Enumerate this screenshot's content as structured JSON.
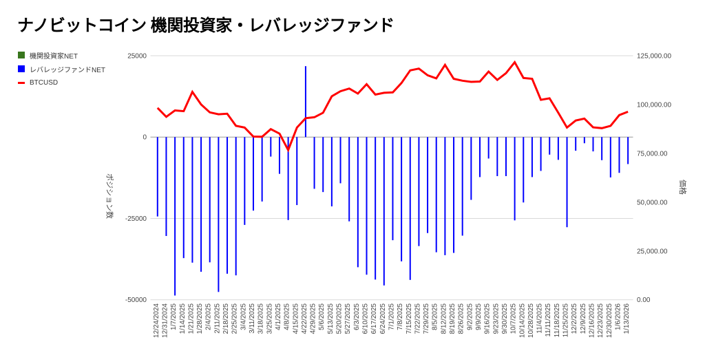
{
  "title": "ナノビットコイン 機関投資家・レバレッジファンド",
  "legend": [
    {
      "label": "機関投資家NET",
      "color": "#38761d",
      "swatch": "square"
    },
    {
      "label": "レバレッジファンドNET",
      "color": "#0000ff",
      "swatch": "square"
    },
    {
      "label": "BTCUSD",
      "color": "#ff0000",
      "swatch": "line"
    }
  ],
  "left_axis": {
    "title": "ポジション数",
    "tick_labels": [
      "25000",
      "0",
      "-25000",
      "-50000"
    ],
    "tick_values": [
      25000,
      0,
      -25000,
      -50000
    ],
    "range": [
      -50000,
      25000
    ]
  },
  "right_axis": {
    "title": "価格",
    "tick_labels": [
      "125,000.00",
      "100,000.00",
      "75,000.00",
      "50,000.00",
      "25,000.00",
      "0.00"
    ],
    "tick_values": [
      125000,
      100000,
      75000,
      50000,
      25000,
      0
    ],
    "range": [
      0,
      125000
    ]
  },
  "chart_data": {
    "type": "combo",
    "title": "ナノビットコイン 機関投資家・レバレッジファンド",
    "xlabel": "",
    "ylabel_left": "ポジション数",
    "ylabel_right": "価格",
    "ylim_left": [
      -50000,
      25000
    ],
    "ylim_right": [
      0,
      125000
    ],
    "grid": "horizontal",
    "legend_position": "left",
    "categories": [
      "12/24/2024",
      "12/31/2024",
      "1/7/2025",
      "1/14/2025",
      "1/21/2025",
      "1/28/2025",
      "2/4/2025",
      "2/11/2025",
      "2/18/2025",
      "2/25/2025",
      "3/4/2025",
      "3/11/2025",
      "3/18/2025",
      "3/25/2025",
      "4/1/2025",
      "4/8/2025",
      "4/15/2025",
      "4/22/2025",
      "4/29/2025",
      "5/6/2025",
      "5/13/2025",
      "5/20/2025",
      "5/27/2025",
      "6/3/2025",
      "6/10/2025",
      "6/17/2025",
      "6/24/2025",
      "7/1/2025",
      "7/8/2025",
      "7/15/2025",
      "7/22/2025",
      "7/29/2025",
      "8/5/2025",
      "8/12/2025",
      "8/19/2025",
      "8/26/2025",
      "9/2/2025",
      "9/9/2025",
      "9/16/2025",
      "9/23/2025",
      "9/30/2025",
      "10/7/2025",
      "10/14/2025",
      "10/28/2025",
      "11/4/2025",
      "11/11/2025",
      "11/18/2025",
      "11/25/2025",
      "12/2/2025",
      "12/9/2025",
      "12/16/2025",
      "12/23/2025",
      "12/30/2025",
      "1/6/2026",
      "1/13/2026"
    ],
    "series": [
      {
        "name": "機関投資家NET",
        "type": "bar",
        "axis": "left",
        "color": "#38761d",
        "values": [
          0,
          0,
          0,
          0,
          0,
          0,
          0,
          0,
          0,
          0,
          0,
          0,
          0,
          0,
          0,
          0,
          0,
          0,
          0,
          0,
          0,
          0,
          0,
          0,
          0,
          0,
          0,
          0,
          0,
          0,
          0,
          0,
          0,
          0,
          0,
          0,
          0,
          0,
          0,
          0,
          0,
          0,
          0,
          0,
          0,
          0,
          0,
          0,
          0,
          0,
          0,
          0,
          0,
          0,
          0
        ]
      },
      {
        "name": "レバレッジファンドNET",
        "type": "bar",
        "axis": "left",
        "color": "#0000ff",
        "values": [
          -24400,
          -30400,
          -48700,
          -37200,
          -38600,
          -41400,
          -38500,
          -47600,
          -42000,
          -42500,
          -27000,
          -22600,
          -19800,
          -6000,
          -11300,
          -25500,
          -20900,
          21800,
          -15900,
          -16900,
          -21300,
          -14200,
          -25900,
          -40000,
          -42300,
          -43800,
          -45600,
          -31700,
          -38200,
          -43900,
          -33500,
          -29500,
          -35400,
          -36300,
          -35600,
          -30300,
          -19300,
          -12300,
          -6600,
          -12000,
          -12000,
          -25600,
          -20100,
          -12300,
          -10400,
          -5400,
          -7000,
          -27700,
          -4200,
          -1900,
          -4400,
          -7100,
          -12400,
          -11000,
          -8300
        ]
      },
      {
        "name": "BTCUSD",
        "type": "line",
        "axis": "right",
        "color": "#ff0000",
        "values": [
          98300,
          93700,
          97000,
          96600,
          106500,
          100000,
          96000,
          95000,
          95300,
          89100,
          88200,
          83600,
          83500,
          87400,
          85100,
          76700,
          88200,
          93000,
          93500,
          95800,
          104200,
          106800,
          108200,
          105600,
          110400,
          105100,
          106000,
          106200,
          111000,
          117500,
          118400,
          115000,
          113400,
          120300,
          113200,
          112200,
          111600,
          111800,
          116900,
          112600,
          116100,
          121700,
          113600,
          113200,
          102400,
          103200,
          95800,
          88200,
          91800,
          92800,
          88300,
          87900,
          89100,
          94600,
          96300
        ]
      }
    ]
  },
  "colors": {
    "grid_line": "#d9d9d9",
    "zero_line": "#999999",
    "tick_text": "#444444",
    "axis_title_text": "#444444"
  }
}
